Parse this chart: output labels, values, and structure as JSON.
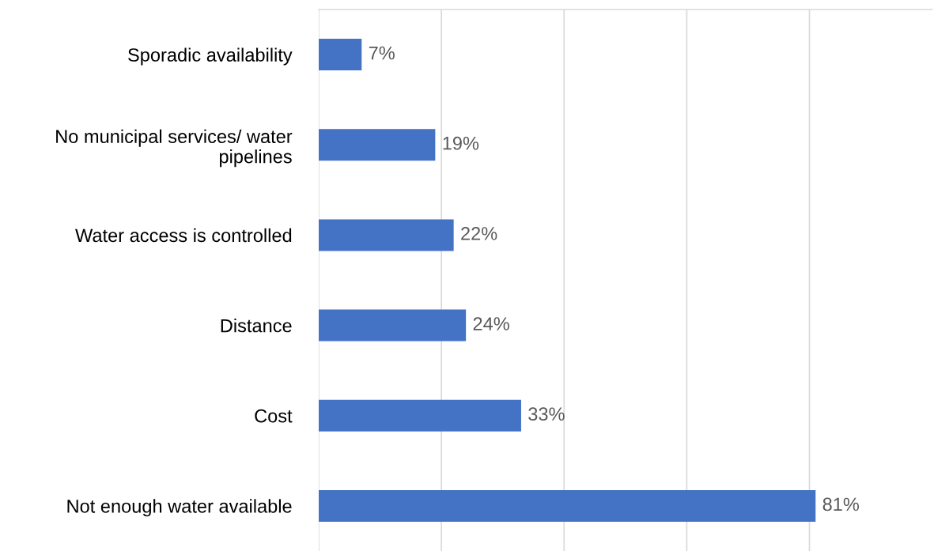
{
  "chart_data": {
    "type": "bar",
    "orientation": "horizontal",
    "categories": [
      "Sporadic availability",
      "No municipal services/ water\npipelines",
      "Water access is controlled",
      "Distance",
      "Cost",
      "Not enough water available"
    ],
    "values": [
      7,
      19,
      22,
      24,
      33,
      81
    ],
    "value_labels": [
      "7%",
      "19%",
      "22%",
      "24%",
      "33%",
      "81%"
    ],
    "color": "#4472c4",
    "xlim": [
      0,
      100
    ],
    "xticks": [
      {
        "value": 0,
        "label": null
      },
      {
        "value": 20,
        "label": null
      },
      {
        "value": 40,
        "label": null
      },
      {
        "value": 60,
        "label": null
      },
      {
        "value": 80,
        "label": null
      }
    ],
    "grid": "x",
    "tick_labels": "y"
  }
}
